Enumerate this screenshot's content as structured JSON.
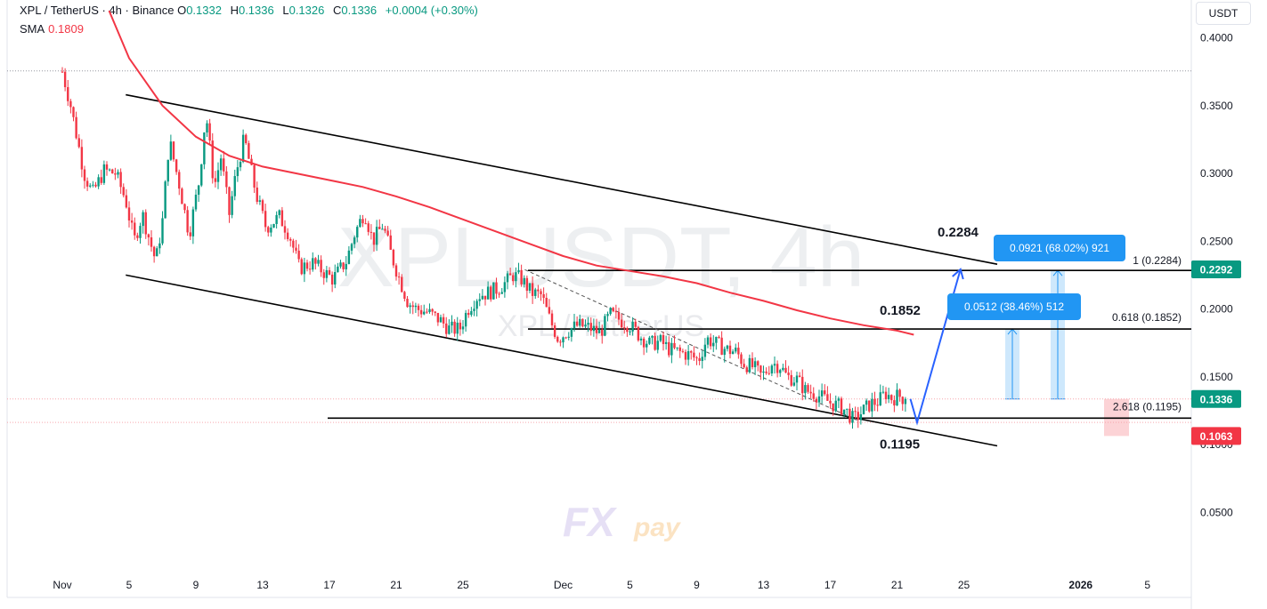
{
  "header": {
    "symbol_line": "XPL / TetherUS · 4h · Binance",
    "o_label": "O",
    "o": "0.1332",
    "h_label": "H",
    "h": "0.1336",
    "l_label": "L",
    "l": "0.1326",
    "c_label": "C",
    "c": "0.1336",
    "change": "+0.0004 (+0.30%)",
    "sma_label": "SMA",
    "sma_value": "0.1809"
  },
  "currency_button": "USDT",
  "watermark": {
    "title": "XPLUSDT, 4h",
    "subtitle": "XPL / TetherUS",
    "logo_fx": "FX",
    "logo_pay": "pay"
  },
  "chart_data": {
    "type": "candlestick",
    "y_ticks": [
      0.05,
      0.1,
      0.15,
      0.2,
      0.25,
      0.3,
      0.35,
      0.4
    ],
    "y_tick_labels": [
      "0.0500",
      "0.1000",
      "0.1500",
      "0.2000",
      "0.2500",
      "0.3000",
      "0.3500",
      "0.4000"
    ],
    "ylim": [
      0.01,
      0.42
    ],
    "x_ticks": [
      {
        "t": 0,
        "label": "Nov"
      },
      {
        "t": 4,
        "label": "5"
      },
      {
        "t": 8,
        "label": "9"
      },
      {
        "t": 12,
        "label": "13"
      },
      {
        "t": 16,
        "label": "17"
      },
      {
        "t": 20,
        "label": "21"
      },
      {
        "t": 24,
        "label": "25"
      },
      {
        "t": 30,
        "label": "Dec"
      },
      {
        "t": 34,
        "label": "5"
      },
      {
        "t": 38,
        "label": "9"
      },
      {
        "t": 42,
        "label": "13"
      },
      {
        "t": 46,
        "label": "17"
      },
      {
        "t": 50,
        "label": "21"
      },
      {
        "t": 54,
        "label": "25"
      },
      {
        "t": 61,
        "label": "2026"
      },
      {
        "t": 65,
        "label": "5"
      }
    ],
    "price_path": [
      [
        0.0,
        0.375
      ],
      [
        0.5,
        0.35
      ],
      [
        1.3,
        0.3
      ],
      [
        1.8,
        0.285
      ],
      [
        2.5,
        0.302
      ],
      [
        3.2,
        0.3
      ],
      [
        3.8,
        0.28
      ],
      [
        4.3,
        0.25
      ],
      [
        4.8,
        0.27
      ],
      [
        5.2,
        0.252
      ],
      [
        5.6,
        0.235
      ],
      [
        6.0,
        0.265
      ],
      [
        6.4,
        0.325
      ],
      [
        7.0,
        0.292
      ],
      [
        7.6,
        0.255
      ],
      [
        8.2,
        0.295
      ],
      [
        8.6,
        0.345
      ],
      [
        9.1,
        0.29
      ],
      [
        9.5,
        0.312
      ],
      [
        10.0,
        0.27
      ],
      [
        10.4,
        0.3
      ],
      [
        10.9,
        0.326
      ],
      [
        11.6,
        0.285
      ],
      [
        12.2,
        0.26
      ],
      [
        13.0,
        0.268
      ],
      [
        13.6,
        0.255
      ],
      [
        14.2,
        0.23
      ],
      [
        15.0,
        0.234
      ],
      [
        15.6,
        0.228
      ],
      [
        16.2,
        0.222
      ],
      [
        17.0,
        0.235
      ],
      [
        17.5,
        0.255
      ],
      [
        18.1,
        0.272
      ],
      [
        18.6,
        0.25
      ],
      [
        19.2,
        0.262
      ],
      [
        19.7,
        0.24
      ],
      [
        20.2,
        0.222
      ],
      [
        20.7,
        0.205
      ],
      [
        21.2,
        0.2
      ],
      [
        21.8,
        0.198
      ],
      [
        22.6,
        0.192
      ],
      [
        23.2,
        0.185
      ],
      [
        23.8,
        0.185
      ],
      [
        24.3,
        0.2
      ],
      [
        24.9,
        0.21
      ],
      [
        25.5,
        0.212
      ],
      [
        26.1,
        0.215
      ],
      [
        26.6,
        0.22
      ],
      [
        27.0,
        0.225
      ],
      [
        27.5,
        0.222
      ],
      [
        28.1,
        0.212
      ],
      [
        28.7,
        0.21
      ],
      [
        29.2,
        0.192
      ],
      [
        29.7,
        0.178
      ],
      [
        30.4,
        0.185
      ],
      [
        30.9,
        0.188
      ],
      [
        31.6,
        0.186
      ],
      [
        32.2,
        0.182
      ],
      [
        32.8,
        0.196
      ],
      [
        33.4,
        0.192
      ],
      [
        34.0,
        0.188
      ],
      [
        34.6,
        0.18
      ],
      [
        35.2,
        0.174
      ],
      [
        35.8,
        0.176
      ],
      [
        36.4,
        0.17
      ],
      [
        37.0,
        0.168
      ],
      [
        37.6,
        0.166
      ],
      [
        38.1,
        0.162
      ],
      [
        38.6,
        0.178
      ],
      [
        39.2,
        0.174
      ],
      [
        39.8,
        0.17
      ],
      [
        40.4,
        0.168
      ],
      [
        40.8,
        0.16
      ],
      [
        41.4,
        0.157
      ],
      [
        41.9,
        0.15
      ],
      [
        42.5,
        0.16
      ],
      [
        43.0,
        0.158
      ],
      [
        43.4,
        0.15
      ],
      [
        44.0,
        0.148
      ],
      [
        44.5,
        0.14
      ],
      [
        45.0,
        0.138
      ],
      [
        45.6,
        0.134
      ],
      [
        46.1,
        0.13
      ],
      [
        46.6,
        0.128
      ],
      [
        47.0,
        0.124
      ],
      [
        47.4,
        0.118
      ],
      [
        47.9,
        0.124
      ],
      [
        48.4,
        0.13
      ],
      [
        48.9,
        0.132
      ],
      [
        49.3,
        0.138
      ],
      [
        49.7,
        0.134
      ],
      [
        50.1,
        0.136
      ],
      [
        50.5,
        0.1336
      ]
    ],
    "sma": {
      "name": "SMA",
      "last": 0.1809,
      "color": "#f23645",
      "points": [
        [
          2.8,
          0.42
        ],
        [
          4.0,
          0.385
        ],
        [
          6.0,
          0.35
        ],
        [
          8.0,
          0.327
        ],
        [
          10.0,
          0.313
        ],
        [
          12.0,
          0.305
        ],
        [
          14.0,
          0.3
        ],
        [
          16.0,
          0.295
        ],
        [
          18.0,
          0.29
        ],
        [
          20.0,
          0.283
        ],
        [
          22.0,
          0.275
        ],
        [
          24.0,
          0.266
        ],
        [
          26.0,
          0.257
        ],
        [
          28.0,
          0.248
        ],
        [
          30.0,
          0.239
        ],
        [
          32.0,
          0.232
        ],
        [
          34.0,
          0.228
        ],
        [
          36.0,
          0.224
        ],
        [
          38.0,
          0.219
        ],
        [
          40.0,
          0.212
        ],
        [
          42.0,
          0.206
        ],
        [
          44.0,
          0.199
        ],
        [
          46.0,
          0.193
        ],
        [
          48.0,
          0.188
        ],
        [
          50.0,
          0.184
        ],
        [
          51.0,
          0.181
        ]
      ]
    },
    "horizontal_levels": [
      0.2284,
      0.1852,
      0.1195
    ],
    "dotted_levels": [
      0.3756,
      0.1336,
      0.1163
    ],
    "price_scale_tags": [
      {
        "label": "0.2292",
        "value": 0.2292,
        "color": "#089981"
      },
      {
        "label": "0.1336",
        "value": 0.1336,
        "color": "#089981"
      },
      {
        "label": "0.1063",
        "value": 0.1063,
        "color": "#f23645"
      }
    ],
    "annotations": {
      "level_labels": [
        "0.2284",
        "0.1852",
        "0.1195"
      ],
      "fib_labels": [
        "1 (0.2284)",
        "0.618 (0.1852)",
        "2.618 (0.1195)"
      ],
      "measure_boxes": [
        "0.0921 (68.02%) 921",
        "0.0512 (38.46%) 512"
      ]
    }
  }
}
